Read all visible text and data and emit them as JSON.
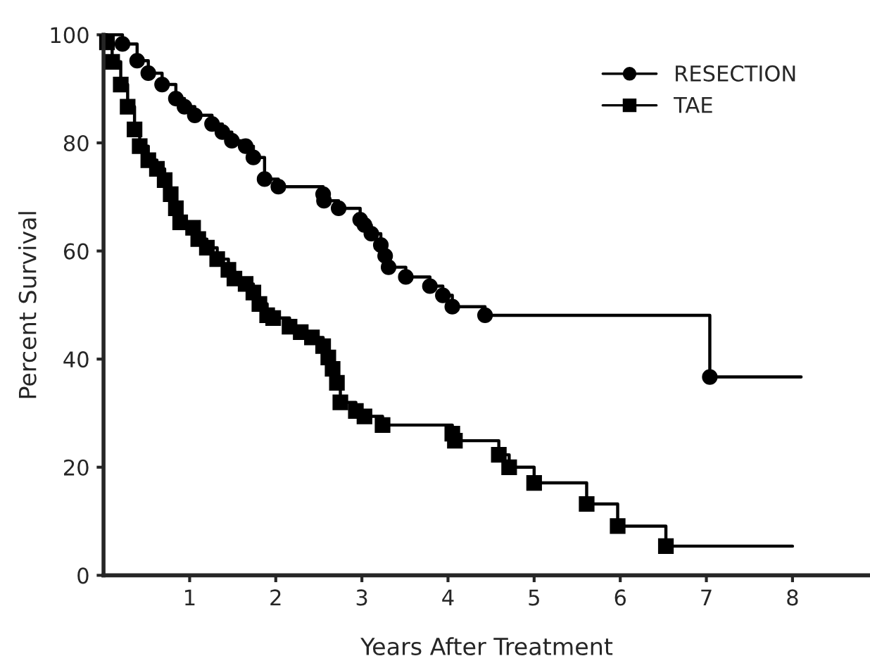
{
  "chart_data": {
    "type": "step",
    "xlabel": "Years After Treatment",
    "ylabel": "Percent Survival",
    "xlim": [
      0,
      8.9
    ],
    "xticks": [
      1,
      2,
      3,
      4,
      5,
      6,
      7,
      8
    ],
    "ylim": [
      0,
      100
    ],
    "yticks": [
      0,
      20,
      40,
      60,
      80,
      100
    ],
    "grid": false,
    "legend": "top right",
    "series": [
      {
        "name": "RESECTION",
        "color": "#000000",
        "marker": "circle",
        "x": [
          0,
          0.22,
          0.39,
          0.52,
          0.68,
          0.84,
          0.94,
          1.06,
          1.26,
          1.38,
          1.49,
          1.65,
          1.74,
          1.87,
          2.03,
          2.55,
          2.56,
          2.73,
          2.98,
          3.03,
          3.11,
          3.22,
          3.27,
          3.31,
          3.51,
          3.79,
          3.94,
          4.05,
          4.43,
          7.04,
          8.1
        ],
        "values": [
          100,
          98.3,
          95.2,
          92.9,
          90.8,
          88.2,
          86.7,
          85.1,
          83.5,
          82,
          80.4,
          79.4,
          77.3,
          73.3,
          71.9,
          70.5,
          69.3,
          67.9,
          65.8,
          64.8,
          63.2,
          61.1,
          59.1,
          57,
          55.2,
          53.5,
          51.8,
          49.7,
          48.1,
          36.7,
          36.7
        ]
      },
      {
        "name": "TAE",
        "color": "#000000",
        "marker": "square",
        "x": [
          0,
          0.04,
          0.1,
          0.2,
          0.28,
          0.36,
          0.42,
          0.52,
          0.62,
          0.71,
          0.78,
          0.84,
          0.89,
          1.04,
          1.1,
          1.2,
          1.32,
          1.45,
          1.52,
          1.65,
          1.74,
          1.81,
          1.9,
          1.97,
          2.16,
          2.29,
          2.42,
          2.55,
          2.61,
          2.66,
          2.71,
          2.75,
          2.93,
          3.03,
          3.24,
          4.05,
          4.08,
          4.59,
          4.71,
          5.0,
          5.61,
          5.97,
          6.53,
          8.0
        ],
        "values": [
          100,
          98.6,
          95,
          90.8,
          86.7,
          82.5,
          79.4,
          76.8,
          75.2,
          73.1,
          70.5,
          67.9,
          65.3,
          64.3,
          62.2,
          60.6,
          58.5,
          56.5,
          54.9,
          53.9,
          52.3,
          50.2,
          48.1,
          47.6,
          46,
          45,
          44,
          42.4,
          40.3,
          38.2,
          35.6,
          32,
          30.4,
          29.4,
          27.8,
          26.2,
          24.9,
          22.3,
          20,
          17.1,
          13.2,
          9.1,
          5.4,
          5.4
        ]
      }
    ]
  }
}
